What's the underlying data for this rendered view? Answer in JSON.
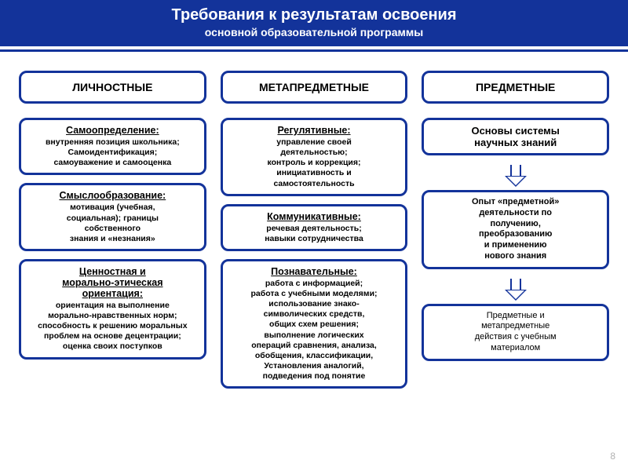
{
  "header": {
    "title": "Требования к результатам освоения",
    "subtitle": "основной образовательной программы"
  },
  "columns": [
    {
      "head": "ЛИЧНОСТНЫЕ",
      "cards": [
        {
          "title": "Самоопределение:",
          "body": "внутренняя позиция школьника;\nСамоидентификация;\nсамоуважение и самооценка"
        },
        {
          "title": "Смыслообразование:",
          "body": "мотивация (учебная,\nсоциальная); границы\nсобственного\nзнания и «незнания»"
        },
        {
          "title": "Ценностная и\nморально-этическая\nориентация:",
          "body": "ориентация на выполнение\nморально-нравственных норм;\nспособность к решению моральных\nпроблем на основе децентрации;\nоценка своих поступков"
        }
      ]
    },
    {
      "head": "МЕТАПРЕДМЕТНЫЕ",
      "cards": [
        {
          "title": "Регулятивные:",
          "body": "управление своей\nдеятельностью;\nконтроль и коррекция;\nинициативность и\nсамостоятельность"
        },
        {
          "title": "Коммуникативные:",
          "body": "речевая деятельность;\nнавыки сотрудничества"
        },
        {
          "title": "Познавательные:",
          "body": "работа с информацией;\nработа с учебными моделями;\nиспользование знако-\nсимволических средств,\nобщих схем решения;\nвыполнение логических\nопераций сравнения, анализа,\nобобщения, классификации,\nУстановления аналогий,\nподведения под понятие"
        }
      ]
    },
    {
      "head": "ПРЕДМЕТНЫЕ",
      "flow": [
        {
          "text": "Основы системы\nнаучных знаний"
        },
        {
          "text": "Опыт «предметной»\nдеятельности по\nполучению,\nпреобразованию\nи применению\nнового знания"
        },
        {
          "text": "Предметные и\nметапредметные\nдействия с учебным\nматериалом"
        }
      ]
    }
  ],
  "page": "8",
  "style": {
    "accent": "#13339a",
    "bg": "#ffffff",
    "border_radius": 10,
    "border_width": 3,
    "title_fontsize": 20,
    "subtitle_fontsize": 14,
    "headbox_fontsize": 14,
    "card_title_fontsize": 12.5,
    "card_body_fontsize": 10.5
  }
}
